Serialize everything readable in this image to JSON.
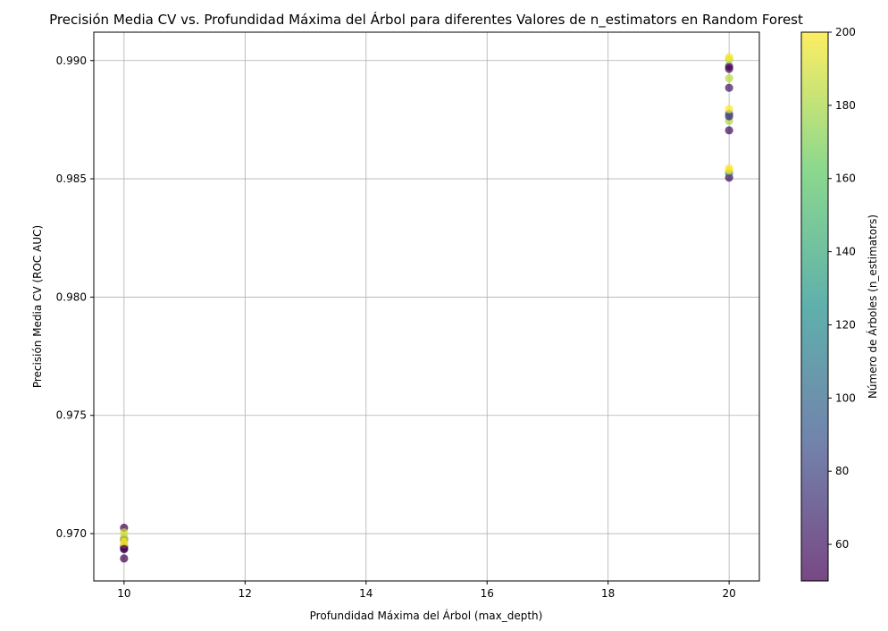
{
  "chart_data": {
    "type": "scatter",
    "title": "Precisión Media CV vs. Profundidad Máxima del Árbol para diferentes Valores de n_estimators en Random Forest",
    "xlabel": "Profundidad Máxima del Árbol (max_depth)",
    "ylabel": "Precisión Media CV (ROC AUC)",
    "xlim": [
      9.5,
      20.5
    ],
    "ylim": [
      0.968,
      0.9912
    ],
    "xticks": [
      10,
      12,
      14,
      16,
      18,
      20
    ],
    "xtick_labels": [
      "10",
      "12",
      "14",
      "16",
      "18",
      "20"
    ],
    "yticks": [
      0.97,
      0.975,
      0.98,
      0.985,
      0.99
    ],
    "ytick_labels": [
      "0.970",
      "0.975",
      "0.980",
      "0.985",
      "0.990"
    ],
    "grid": true,
    "colorbar": {
      "label": "Número de Árboles (n_estimators)",
      "range": [
        50,
        200
      ],
      "ticks": [
        60,
        80,
        100,
        120,
        140,
        160,
        180,
        200
      ],
      "tick_labels": [
        "60",
        "80",
        "100",
        "120",
        "140",
        "160",
        "180",
        "200"
      ],
      "colormap": "viridis"
    },
    "points": [
      {
        "x": 10,
        "y": 0.96895,
        "c": 50
      },
      {
        "x": 10,
        "y": 0.96935,
        "c": 60
      },
      {
        "x": 10,
        "y": 0.96945,
        "c": 50
      },
      {
        "x": 10,
        "y": 0.96975,
        "c": 60
      },
      {
        "x": 10,
        "y": 0.97025,
        "c": 50
      },
      {
        "x": 10,
        "y": 0.97005,
        "c": 190
      },
      {
        "x": 10,
        "y": 0.96985,
        "c": 185
      },
      {
        "x": 10,
        "y": 0.96965,
        "c": 200
      },
      {
        "x": 10,
        "y": 0.96955,
        "c": 195
      },
      {
        "x": 10,
        "y": 0.96935,
        "c": 50
      },
      {
        "x": 20,
        "y": 0.98505,
        "c": 55
      },
      {
        "x": 20,
        "y": 0.98525,
        "c": 100
      },
      {
        "x": 20,
        "y": 0.98535,
        "c": 195
      },
      {
        "x": 20,
        "y": 0.98545,
        "c": 200
      },
      {
        "x": 20,
        "y": 0.98705,
        "c": 55
      },
      {
        "x": 20,
        "y": 0.98745,
        "c": 180
      },
      {
        "x": 20,
        "y": 0.98765,
        "c": 60
      },
      {
        "x": 20,
        "y": 0.98775,
        "c": 90
      },
      {
        "x": 20,
        "y": 0.98795,
        "c": 200
      },
      {
        "x": 20,
        "y": 0.98885,
        "c": 60
      },
      {
        "x": 20,
        "y": 0.98925,
        "c": 185
      },
      {
        "x": 20,
        "y": 0.98965,
        "c": 50
      },
      {
        "x": 20,
        "y": 0.98975,
        "c": 50
      },
      {
        "x": 20,
        "y": 0.99005,
        "c": 180
      },
      {
        "x": 20,
        "y": 0.99015,
        "c": 200
      }
    ]
  },
  "colors": {
    "grid": "#b0b0b0",
    "axes": "#000000",
    "colormap_stops": [
      "#440154",
      "#3b528b",
      "#21918c",
      "#5ec962",
      "#fde725"
    ]
  }
}
